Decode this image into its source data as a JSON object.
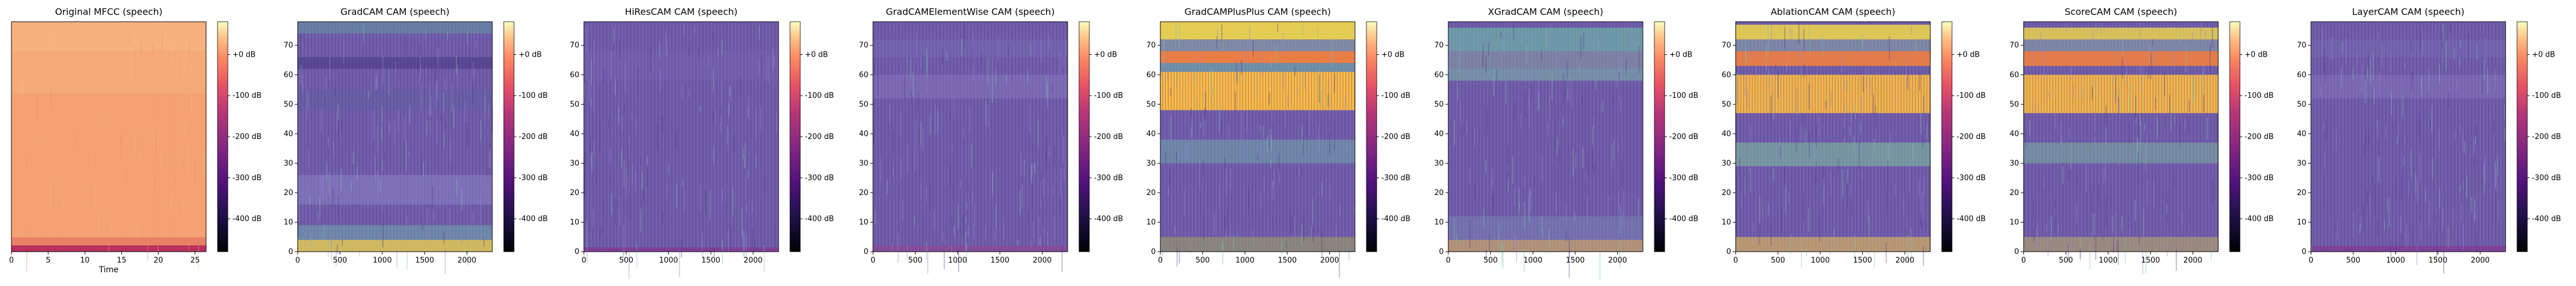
{
  "chart_data": [
    {
      "type": "heatmap",
      "title": "Original MFCC (speech)",
      "xlabel": "Time",
      "ylabel": "",
      "xlim": [
        0,
        26.5
      ],
      "ylim": [
        0,
        80
      ],
      "x_ticks": [
        0,
        5,
        10,
        15,
        20,
        25
      ],
      "y_ticks": [],
      "colormap": "magma",
      "colorbar": {
        "range_db": [
          -480,
          80
        ],
        "ticks": [
          0,
          -100,
          -200,
          -300,
          -400
        ],
        "tick_labels": [
          "+0 dB",
          "-100 dB",
          "-200 dB",
          "-300 dB",
          "-400 dB"
        ]
      }
    },
    {
      "type": "heatmap",
      "title": "GradCAM CAM (speech)",
      "xlabel": "",
      "ylabel": "",
      "xlim": [
        0,
        2300
      ],
      "ylim": [
        0,
        78
      ],
      "x_ticks": [
        0,
        500,
        1000,
        1500,
        2000
      ],
      "y_ticks": [
        0,
        10,
        20,
        30,
        40,
        50,
        60,
        70
      ],
      "colormap": "magma",
      "colorbar": {
        "range_db": [
          -480,
          80
        ],
        "ticks": [
          0,
          -100,
          -200,
          -300,
          -400
        ],
        "tick_labels": [
          "+0 dB",
          "-100 dB",
          "-200 dB",
          "-300 dB",
          "-400 dB"
        ]
      }
    },
    {
      "type": "heatmap",
      "title": "HiResCAM CAM (speech)",
      "xlabel": "",
      "ylabel": "",
      "xlim": [
        0,
        2300
      ],
      "ylim": [
        0,
        78
      ],
      "x_ticks": [
        0,
        500,
        1000,
        1500,
        2000
      ],
      "y_ticks": [
        0,
        10,
        20,
        30,
        40,
        50,
        60,
        70
      ],
      "colormap": "magma",
      "colorbar": {
        "range_db": [
          -480,
          80
        ],
        "ticks": [
          0,
          -100,
          -200,
          -300,
          -400
        ],
        "tick_labels": [
          "+0 dB",
          "-100 dB",
          "-200 dB",
          "-300 dB",
          "-400 dB"
        ]
      }
    },
    {
      "type": "heatmap",
      "title": "GradCAMElementWise CAM (speech)",
      "xlabel": "",
      "ylabel": "",
      "xlim": [
        0,
        2300
      ],
      "ylim": [
        0,
        78
      ],
      "x_ticks": [
        0,
        500,
        1000,
        1500,
        2000
      ],
      "y_ticks": [
        0,
        10,
        20,
        30,
        40,
        50,
        60,
        70
      ],
      "colormap": "magma",
      "colorbar": {
        "range_db": [
          -480,
          80
        ],
        "ticks": [
          0,
          -100,
          -200,
          -300,
          -400
        ],
        "tick_labels": [
          "+0 dB",
          "-100 dB",
          "-200 dB",
          "-300 dB",
          "-400 dB"
        ]
      }
    },
    {
      "type": "heatmap",
      "title": "GradCAMPlusPlus CAM (speech)",
      "xlabel": "",
      "ylabel": "",
      "xlim": [
        0,
        2300
      ],
      "ylim": [
        0,
        78
      ],
      "x_ticks": [
        0,
        500,
        1000,
        1500,
        2000
      ],
      "y_ticks": [
        0,
        10,
        20,
        30,
        40,
        50,
        60,
        70
      ],
      "colormap": "magma",
      "colorbar": {
        "range_db": [
          -480,
          80
        ],
        "ticks": [
          0,
          -100,
          -200,
          -300,
          -400
        ],
        "tick_labels": [
          "+0 dB",
          "-100 dB",
          "-200 dB",
          "-300 dB",
          "-400 dB"
        ]
      }
    },
    {
      "type": "heatmap",
      "title": "XGradCAM CAM (speech)",
      "xlabel": "",
      "ylabel": "",
      "xlim": [
        0,
        2300
      ],
      "ylim": [
        0,
        78
      ],
      "x_ticks": [
        0,
        500,
        1000,
        1500,
        2000
      ],
      "y_ticks": [
        0,
        10,
        20,
        30,
        40,
        50,
        60,
        70
      ],
      "colormap": "magma",
      "colorbar": {
        "range_db": [
          -480,
          80
        ],
        "ticks": [
          0,
          -100,
          -200,
          -300,
          -400
        ],
        "tick_labels": [
          "+0 dB",
          "-100 dB",
          "-200 dB",
          "-300 dB",
          "-400 dB"
        ]
      }
    },
    {
      "type": "heatmap",
      "title": "AblationCAM CAM (speech)",
      "xlabel": "",
      "ylabel": "",
      "xlim": [
        0,
        2300
      ],
      "ylim": [
        0,
        78
      ],
      "x_ticks": [
        0,
        500,
        1000,
        1500,
        2000
      ],
      "y_ticks": [
        0,
        10,
        20,
        30,
        40,
        50,
        60,
        70
      ],
      "colormap": "magma",
      "colorbar": {
        "range_db": [
          -480,
          80
        ],
        "ticks": [
          0,
          -100,
          -200,
          -300,
          -400
        ],
        "tick_labels": [
          "+0 dB",
          "-100 dB",
          "-200 dB",
          "-300 dB",
          "-400 dB"
        ]
      }
    },
    {
      "type": "heatmap",
      "title": "ScoreCAM CAM (speech)",
      "xlabel": "",
      "ylabel": "",
      "xlim": [
        0,
        2300
      ],
      "ylim": [
        0,
        78
      ],
      "x_ticks": [
        0,
        500,
        1000,
        1500,
        2000
      ],
      "y_ticks": [
        0,
        10,
        20,
        30,
        40,
        50,
        60,
        70
      ],
      "colormap": "magma",
      "colorbar": {
        "range_db": [
          -480,
          80
        ],
        "ticks": [
          0,
          -100,
          -200,
          -300,
          -400
        ],
        "tick_labels": [
          "+0 dB",
          "-100 dB",
          "-200 dB",
          "-300 dB",
          "-400 dB"
        ]
      }
    },
    {
      "type": "heatmap",
      "title": "LayerCAM CAM (speech)",
      "xlabel": "",
      "ylabel": "",
      "xlim": [
        0,
        2300
      ],
      "ylim": [
        0,
        78
      ],
      "x_ticks": [
        0,
        500,
        1000,
        1500,
        2000
      ],
      "y_ticks": [
        0,
        10,
        20,
        30,
        40,
        50,
        60,
        70
      ],
      "colormap": "magma",
      "colorbar": {
        "range_db": [
          -480,
          80
        ],
        "ticks": [
          0,
          -100,
          -200,
          -300,
          -400
        ],
        "tick_labels": [
          "+0 dB",
          "-100 dB",
          "-200 dB",
          "-300 dB",
          "-400 dB"
        ]
      }
    }
  ],
  "colors": {
    "base_plasma": "#6e5aa8",
    "mfcc_bg": "#f4a071",
    "highlight_yellow": "#f2e04a",
    "highlight_orange": "#f08040",
    "highlight_teal": "#6fb8a8"
  }
}
